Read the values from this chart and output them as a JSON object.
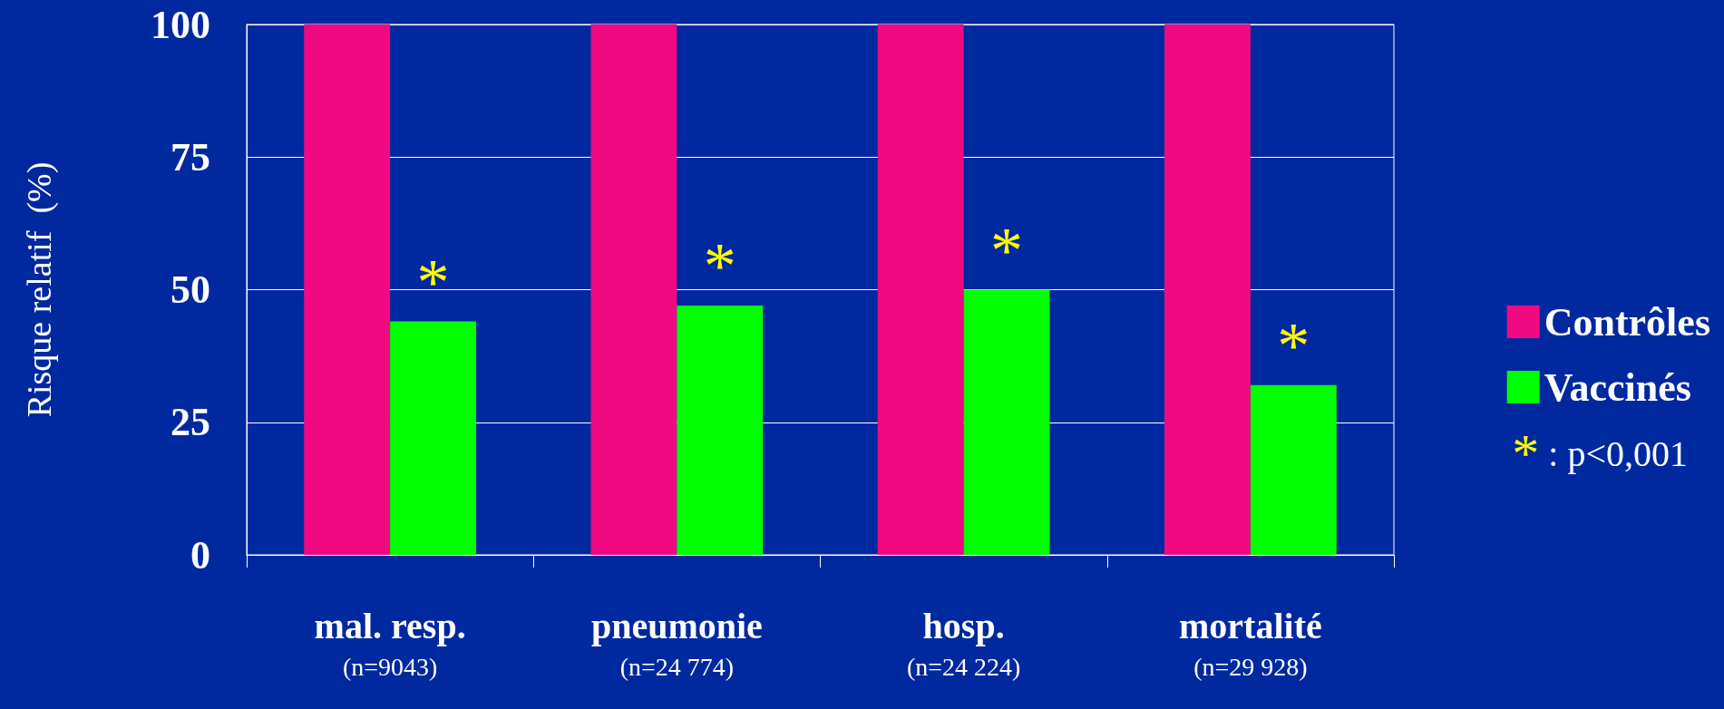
{
  "chart_data": {
    "type": "bar",
    "ylabel": "Risque relatif  (%)",
    "categories": [
      "mal. resp.\n(n=9043)",
      "pneumonie\n(n=24 774)",
      "hosp.\n(n=24 224)",
      "mortalité\n(n=29 928)"
    ],
    "series": [
      {
        "name": "Contrôles",
        "color": "#f00a82",
        "values": [
          100,
          100,
          100,
          100
        ]
      },
      {
        "name": "Vaccinés",
        "color": "#00ff00",
        "values": [
          44,
          47,
          50,
          32
        ]
      }
    ],
    "ylim": [
      0,
      100
    ],
    "yticks": [
      0,
      25,
      50,
      75,
      100
    ],
    "grid": "y",
    "legend": "right",
    "annotations": [
      {
        "text": "*",
        "x": "mal. resp.\n(n=9043)",
        "y": 44
      },
      {
        "text": "*",
        "x": "pneumonie\n(n=24 774)",
        "y": 47
      },
      {
        "text": "*",
        "x": "hosp.\n(n=24 224)",
        "y": 50
      },
      {
        "text": "*",
        "x": "mortalité\n(n=29 928)",
        "y": 32
      },
      "* : p<0,001"
    ]
  }
}
